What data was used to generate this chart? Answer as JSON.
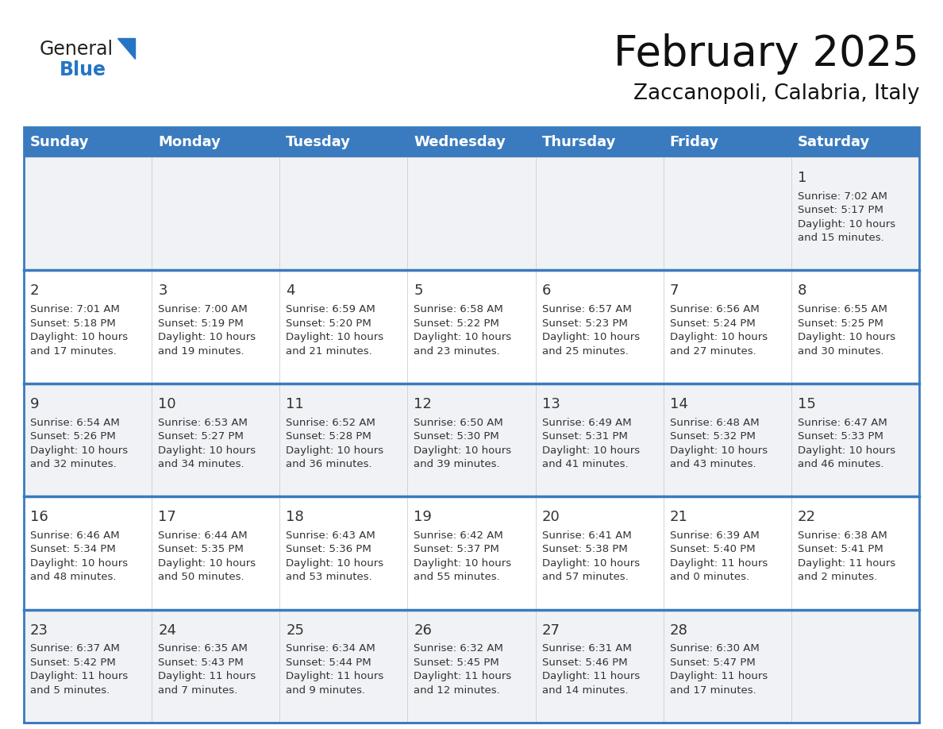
{
  "title": "February 2025",
  "subtitle": "Zaccanopoli, Calabria, Italy",
  "header_color": "#3a7bbf",
  "header_text_color": "#ffffff",
  "cell_bg_light": "#f0f2f5",
  "cell_bg_white": "#ffffff",
  "day_headers": [
    "Sunday",
    "Monday",
    "Tuesday",
    "Wednesday",
    "Thursday",
    "Friday",
    "Saturday"
  ],
  "title_fontsize": 38,
  "subtitle_fontsize": 19,
  "header_fontsize": 13,
  "cell_day_fontsize": 13,
  "cell_info_fontsize": 9.5,
  "logo_text1": "General",
  "logo_text2": "Blue",
  "logo_color1": "#222222",
  "logo_color2": "#2575c4",
  "logo_triangle_color": "#2575c4",
  "cell_day_color": "#333333",
  "cell_info_color": "#333333",
  "divider_color": "#3a7bbf",
  "weeks": [
    [
      {
        "day": "",
        "info": ""
      },
      {
        "day": "",
        "info": ""
      },
      {
        "day": "",
        "info": ""
      },
      {
        "day": "",
        "info": ""
      },
      {
        "day": "",
        "info": ""
      },
      {
        "day": "",
        "info": ""
      },
      {
        "day": "1",
        "info": "Sunrise: 7:02 AM\nSunset: 5:17 PM\nDaylight: 10 hours\nand 15 minutes."
      }
    ],
    [
      {
        "day": "2",
        "info": "Sunrise: 7:01 AM\nSunset: 5:18 PM\nDaylight: 10 hours\nand 17 minutes."
      },
      {
        "day": "3",
        "info": "Sunrise: 7:00 AM\nSunset: 5:19 PM\nDaylight: 10 hours\nand 19 minutes."
      },
      {
        "day": "4",
        "info": "Sunrise: 6:59 AM\nSunset: 5:20 PM\nDaylight: 10 hours\nand 21 minutes."
      },
      {
        "day": "5",
        "info": "Sunrise: 6:58 AM\nSunset: 5:22 PM\nDaylight: 10 hours\nand 23 minutes."
      },
      {
        "day": "6",
        "info": "Sunrise: 6:57 AM\nSunset: 5:23 PM\nDaylight: 10 hours\nand 25 minutes."
      },
      {
        "day": "7",
        "info": "Sunrise: 6:56 AM\nSunset: 5:24 PM\nDaylight: 10 hours\nand 27 minutes."
      },
      {
        "day": "8",
        "info": "Sunrise: 6:55 AM\nSunset: 5:25 PM\nDaylight: 10 hours\nand 30 minutes."
      }
    ],
    [
      {
        "day": "9",
        "info": "Sunrise: 6:54 AM\nSunset: 5:26 PM\nDaylight: 10 hours\nand 32 minutes."
      },
      {
        "day": "10",
        "info": "Sunrise: 6:53 AM\nSunset: 5:27 PM\nDaylight: 10 hours\nand 34 minutes."
      },
      {
        "day": "11",
        "info": "Sunrise: 6:52 AM\nSunset: 5:28 PM\nDaylight: 10 hours\nand 36 minutes."
      },
      {
        "day": "12",
        "info": "Sunrise: 6:50 AM\nSunset: 5:30 PM\nDaylight: 10 hours\nand 39 minutes."
      },
      {
        "day": "13",
        "info": "Sunrise: 6:49 AM\nSunset: 5:31 PM\nDaylight: 10 hours\nand 41 minutes."
      },
      {
        "day": "14",
        "info": "Sunrise: 6:48 AM\nSunset: 5:32 PM\nDaylight: 10 hours\nand 43 minutes."
      },
      {
        "day": "15",
        "info": "Sunrise: 6:47 AM\nSunset: 5:33 PM\nDaylight: 10 hours\nand 46 minutes."
      }
    ],
    [
      {
        "day": "16",
        "info": "Sunrise: 6:46 AM\nSunset: 5:34 PM\nDaylight: 10 hours\nand 48 minutes."
      },
      {
        "day": "17",
        "info": "Sunrise: 6:44 AM\nSunset: 5:35 PM\nDaylight: 10 hours\nand 50 minutes."
      },
      {
        "day": "18",
        "info": "Sunrise: 6:43 AM\nSunset: 5:36 PM\nDaylight: 10 hours\nand 53 minutes."
      },
      {
        "day": "19",
        "info": "Sunrise: 6:42 AM\nSunset: 5:37 PM\nDaylight: 10 hours\nand 55 minutes."
      },
      {
        "day": "20",
        "info": "Sunrise: 6:41 AM\nSunset: 5:38 PM\nDaylight: 10 hours\nand 57 minutes."
      },
      {
        "day": "21",
        "info": "Sunrise: 6:39 AM\nSunset: 5:40 PM\nDaylight: 11 hours\nand 0 minutes."
      },
      {
        "day": "22",
        "info": "Sunrise: 6:38 AM\nSunset: 5:41 PM\nDaylight: 11 hours\nand 2 minutes."
      }
    ],
    [
      {
        "day": "23",
        "info": "Sunrise: 6:37 AM\nSunset: 5:42 PM\nDaylight: 11 hours\nand 5 minutes."
      },
      {
        "day": "24",
        "info": "Sunrise: 6:35 AM\nSunset: 5:43 PM\nDaylight: 11 hours\nand 7 minutes."
      },
      {
        "day": "25",
        "info": "Sunrise: 6:34 AM\nSunset: 5:44 PM\nDaylight: 11 hours\nand 9 minutes."
      },
      {
        "day": "26",
        "info": "Sunrise: 6:32 AM\nSunset: 5:45 PM\nDaylight: 11 hours\nand 12 minutes."
      },
      {
        "day": "27",
        "info": "Sunrise: 6:31 AM\nSunset: 5:46 PM\nDaylight: 11 hours\nand 14 minutes."
      },
      {
        "day": "28",
        "info": "Sunrise: 6:30 AM\nSunset: 5:47 PM\nDaylight: 11 hours\nand 17 minutes."
      },
      {
        "day": "",
        "info": ""
      }
    ]
  ]
}
